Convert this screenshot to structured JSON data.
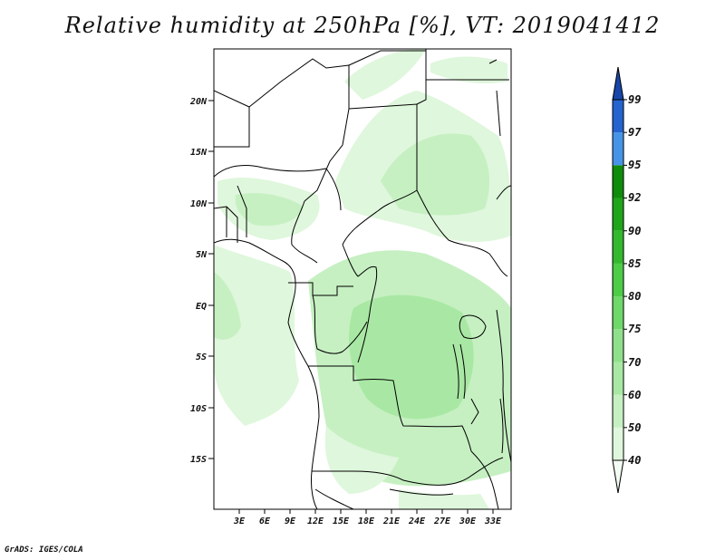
{
  "title": "Relative humidity at 250hPa [%], VT: 2019041412",
  "credit": "GrADS: IGES/COLA",
  "map": {
    "lat_labels": [
      "20N",
      "15N",
      "10N",
      "5N",
      "EQ",
      "5S",
      "10S",
      "15S"
    ],
    "lon_labels": [
      "3E",
      "6E",
      "9E",
      "12E",
      "15E",
      "18E",
      "21E",
      "24E",
      "27E",
      "30E",
      "33E"
    ]
  },
  "colorbar": {
    "labels": [
      "40",
      "50",
      "60",
      "70",
      "75",
      "80",
      "85",
      "90",
      "92",
      "95",
      "97",
      "99"
    ],
    "colors": [
      "#f3fcf2",
      "#dff7dc",
      "#c6f0c2",
      "#a9e8a4",
      "#8fe08a",
      "#6ed869",
      "#4ccc47",
      "#33b82e",
      "#1ea51a",
      "#0f8c0c",
      "#4694e8",
      "#2563cf",
      "#1746a8"
    ]
  }
}
